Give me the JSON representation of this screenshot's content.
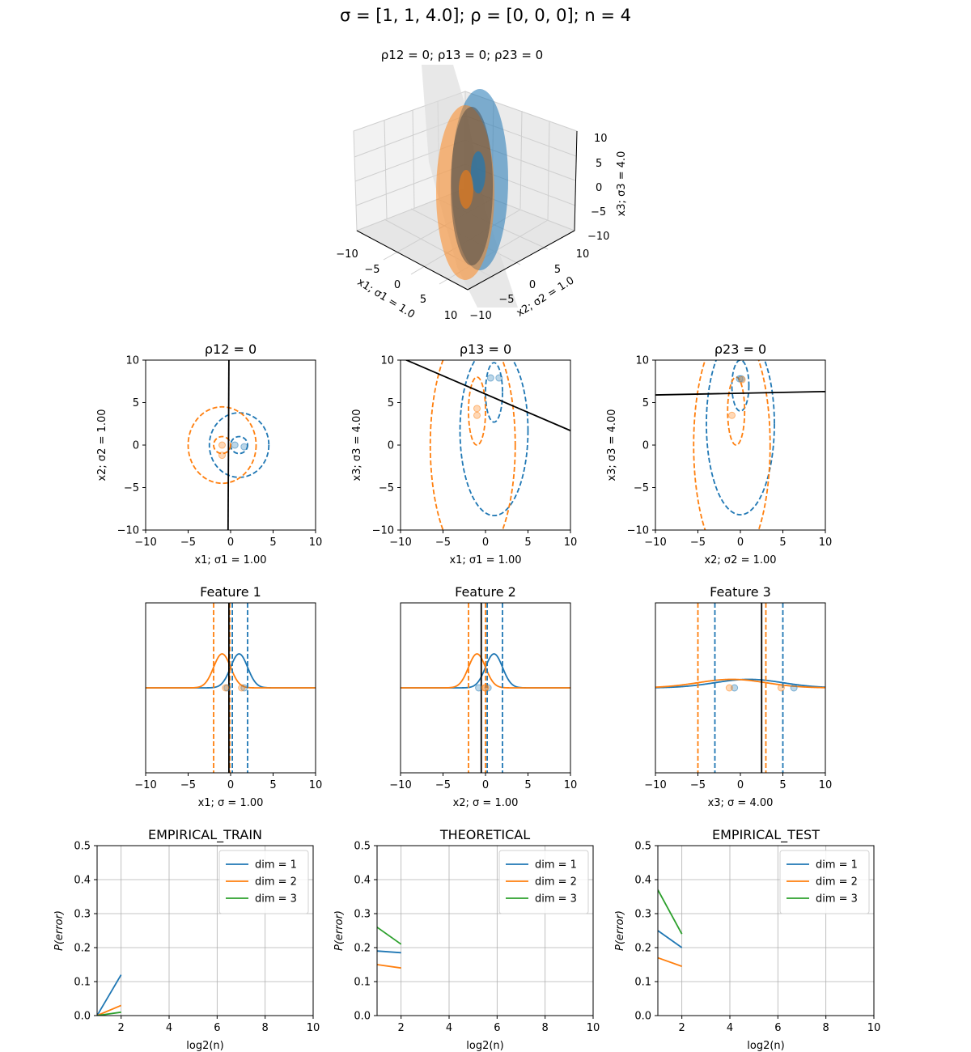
{
  "figure": {
    "suptitle": "σ =  [1, 1, 4.0]; ρ =  [0, 0, 0]; n =  4"
  },
  "colors": {
    "class_a": "#1f77b4",
    "class_b": "#ff7f0e",
    "class_c": "#2ca02c",
    "boundary": "#000000",
    "grid": "#b0b0b0"
  },
  "chart_data": [
    {
      "id": "surface3d",
      "type": "surface3d",
      "title": "ρ12 = 0;  ρ13 = 0;  ρ23 = 0",
      "xlabel": "x1;  σ1 = 1.0",
      "ylabel": "x2;  σ2 = 1.0",
      "zlabel": "x3;  σ3 = 4.0",
      "xlim": [
        -10,
        10
      ],
      "ylim": [
        -10,
        10
      ],
      "zlim": [
        -10,
        10
      ],
      "ticks": [
        -10,
        -5,
        0,
        5,
        10
      ]
    },
    {
      "id": "contour12",
      "type": "contour",
      "title": "ρ12 = 0",
      "xlabel": "x1;  σ1 = 1.00",
      "ylabel": "x2;  σ2 = 1.00",
      "xlim": [
        -10,
        10
      ],
      "ylim": [
        -10,
        10
      ],
      "ticks": [
        -10,
        -5,
        0,
        5,
        10
      ],
      "ellipses": [
        {
          "class": "a",
          "cx": 1.0,
          "cy": 0,
          "rx": 1.0,
          "ry": 1.0
        },
        {
          "class": "a",
          "cx": 1.0,
          "cy": 0,
          "rx": 3.5,
          "ry": 3.8
        },
        {
          "class": "b",
          "cx": -1.0,
          "cy": 0,
          "rx": 1.0,
          "ry": 1.0
        },
        {
          "class": "b",
          "cx": -1.0,
          "cy": 0,
          "rx": 4.0,
          "ry": 4.5
        }
      ],
      "points": [
        {
          "class": "a",
          "x": 0.5,
          "y": 0.0
        },
        {
          "class": "a",
          "x": 1.6,
          "y": -0.2
        },
        {
          "class": "b",
          "x": -1.0,
          "y": 0.0
        },
        {
          "class": "b",
          "x": -1.0,
          "y": -1.2
        }
      ],
      "boundary": [
        [
          -0.2,
          10
        ],
        [
          -0.3,
          -10
        ]
      ]
    },
    {
      "id": "contour13",
      "type": "contour",
      "title": "ρ13 = 0",
      "xlabel": "x1;  σ1 = 1.00",
      "ylabel": "x3;  σ3 = 4.00",
      "xlim": [
        -10,
        10
      ],
      "ylim": [
        -10,
        10
      ],
      "ticks": [
        -10,
        -5,
        0,
        5,
        10
      ],
      "ellipses": [
        {
          "class": "a",
          "cx": 1.0,
          "cy": 6.2,
          "rx": 1.0,
          "ry": 3.5
        },
        {
          "class": "a",
          "cx": 1.0,
          "cy": 1.7,
          "rx": 4.0,
          "ry": 10.0
        },
        {
          "class": "b",
          "cx": -1.0,
          "cy": 4.0,
          "rx": 1.0,
          "ry": 4.0
        },
        {
          "class": "b",
          "cx": -1.5,
          "cy": 0.0,
          "rx": 5.0,
          "ry": 14.0
        }
      ],
      "points": [
        {
          "class": "a",
          "x": 0.6,
          "y": 7.9
        },
        {
          "class": "a",
          "x": 1.6,
          "y": 7.9
        },
        {
          "class": "b",
          "x": -1.0,
          "y": 4.3
        },
        {
          "class": "b",
          "x": -1.0,
          "y": 3.5
        }
      ],
      "boundary": [
        [
          -10,
          10.3
        ],
        [
          10,
          1.7
        ]
      ]
    },
    {
      "id": "contour23",
      "type": "contour",
      "title": "ρ23 = 0",
      "xlabel": "x2;  σ2 = 1.00",
      "ylabel": "x3;  σ3 = 4.00",
      "xlim": [
        -10,
        10
      ],
      "ylim": [
        -10,
        10
      ],
      "ticks": [
        -10,
        -5,
        0,
        5,
        10
      ],
      "ellipses": [
        {
          "class": "a",
          "cx": 0.0,
          "cy": 7.0,
          "rx": 1.0,
          "ry": 3.0
        },
        {
          "class": "a",
          "cx": 0.0,
          "cy": 2.5,
          "rx": 4.0,
          "ry": 10.7
        },
        {
          "class": "b",
          "cx": -0.5,
          "cy": 4.0,
          "rx": 1.0,
          "ry": 4.0
        },
        {
          "class": "b",
          "cx": -1.0,
          "cy": 0.0,
          "rx": 4.5,
          "ry": 14.0
        }
      ],
      "points": [
        {
          "class": "a",
          "x": -0.1,
          "y": 7.8
        },
        {
          "class": "a",
          "x": 0.1,
          "y": 7.8
        },
        {
          "class": "b",
          "x": -1.0,
          "y": 3.5
        },
        {
          "class": "b",
          "x": 0.2,
          "y": 7.7
        }
      ],
      "boundary": [
        [
          -10,
          5.9
        ],
        [
          10,
          6.3
        ]
      ]
    },
    {
      "id": "feature1",
      "type": "density",
      "title": "Feature 1",
      "xlabel": "x1; σ = 1.00",
      "xlim": [
        -10,
        10
      ],
      "ylim": [
        -1,
        1
      ],
      "ticks": [
        -10,
        -5,
        0,
        5,
        10
      ],
      "curves": [
        {
          "class": "a",
          "mu": 1.0,
          "sigma": 1.0,
          "amp": 0.4
        },
        {
          "class": "b",
          "mu": -1.0,
          "sigma": 1.0,
          "amp": 0.4
        }
      ],
      "vlines_dashed": [
        {
          "class": "a",
          "x": 2.0
        },
        {
          "class": "a",
          "x": 0.2
        },
        {
          "class": "b",
          "x": -2.0
        },
        {
          "class": "b",
          "x": -0.1
        }
      ],
      "vline_solid": -0.2,
      "points": [
        {
          "class": "a",
          "x": -0.4
        },
        {
          "class": "a",
          "x": 1.6
        },
        {
          "class": "b",
          "x": -0.6
        },
        {
          "class": "b",
          "x": 1.3
        }
      ]
    },
    {
      "id": "feature2",
      "type": "density",
      "title": "Feature 2",
      "xlabel": "x2; σ = 1.00",
      "xlim": [
        -10,
        10
      ],
      "ylim": [
        -1,
        1
      ],
      "ticks": [
        -10,
        -5,
        0,
        5,
        10
      ],
      "curves": [
        {
          "class": "a",
          "mu": 1.0,
          "sigma": 1.0,
          "amp": 0.4
        },
        {
          "class": "b",
          "mu": -1.0,
          "sigma": 1.0,
          "amp": 0.4
        }
      ],
      "vlines_dashed": [
        {
          "class": "a",
          "x": 2.0
        },
        {
          "class": "a",
          "x": 0.2
        },
        {
          "class": "b",
          "x": -2.0
        },
        {
          "class": "b",
          "x": 0.0
        }
      ],
      "vline_solid": -0.5,
      "points": [
        {
          "class": "a",
          "x": -0.8
        },
        {
          "class": "a",
          "x": 0.3
        },
        {
          "class": "b",
          "x": -0.1
        },
        {
          "class": "b",
          "x": 0.0
        }
      ]
    },
    {
      "id": "feature3",
      "type": "density",
      "title": "Feature 3",
      "xlabel": "x3; σ = 4.00",
      "xlim": [
        -10,
        10
      ],
      "ylim": [
        -1,
        1
      ],
      "ticks": [
        -10,
        -5,
        0,
        5,
        10
      ],
      "curves": [
        {
          "class": "a",
          "mu": 1.0,
          "sigma": 4.0,
          "amp": 0.1
        },
        {
          "class": "b",
          "mu": -1.0,
          "sigma": 4.0,
          "amp": 0.1
        }
      ],
      "vlines_dashed": [
        {
          "class": "a",
          "x": 5.0
        },
        {
          "class": "a",
          "x": -3.0
        },
        {
          "class": "b",
          "x": -5.0
        },
        {
          "class": "b",
          "x": 3.0
        }
      ],
      "vline_solid": 2.5,
      "points": [
        {
          "class": "a",
          "x": -0.7
        },
        {
          "class": "a",
          "x": 6.3
        },
        {
          "class": "b",
          "x": -1.3
        },
        {
          "class": "b",
          "x": 4.8
        }
      ]
    },
    {
      "id": "empirical_train",
      "type": "line",
      "title": "EMPIRICAL_TRAIN",
      "xlabel": "log2(n)",
      "ylabel": "P(error)",
      "xlim": [
        1,
        10
      ],
      "ylim": [
        0,
        0.5
      ],
      "xticks": [
        2,
        4,
        6,
        8,
        10
      ],
      "yticks": [
        0.0,
        0.1,
        0.2,
        0.3,
        0.4,
        0.5
      ],
      "legend": "top-right",
      "x": [
        1,
        2
      ],
      "series": [
        {
          "name": "dim = 1",
          "class": "a",
          "values": [
            0.0,
            0.12
          ]
        },
        {
          "name": "dim = 2",
          "class": "b",
          "values": [
            0.0,
            0.03
          ]
        },
        {
          "name": "dim = 3",
          "class": "c",
          "values": [
            0.0,
            0.01
          ]
        }
      ]
    },
    {
      "id": "theoretical",
      "type": "line",
      "title": "THEORETICAL",
      "xlabel": "log2(n)",
      "ylabel": "P(error)",
      "xlim": [
        1,
        10
      ],
      "ylim": [
        0,
        0.5
      ],
      "xticks": [
        2,
        4,
        6,
        8,
        10
      ],
      "yticks": [
        0.0,
        0.1,
        0.2,
        0.3,
        0.4,
        0.5
      ],
      "legend": "top-right",
      "x": [
        1,
        2
      ],
      "series": [
        {
          "name": "dim = 1",
          "class": "a",
          "values": [
            0.19,
            0.185
          ]
        },
        {
          "name": "dim = 2",
          "class": "b",
          "values": [
            0.15,
            0.14
          ]
        },
        {
          "name": "dim = 3",
          "class": "c",
          "values": [
            0.26,
            0.21
          ]
        }
      ]
    },
    {
      "id": "empirical_test",
      "type": "line",
      "title": "EMPIRICAL_TEST",
      "xlabel": "log2(n)",
      "ylabel": "P(error)",
      "xlim": [
        1,
        10
      ],
      "ylim": [
        0,
        0.5
      ],
      "xticks": [
        2,
        4,
        6,
        8,
        10
      ],
      "yticks": [
        0.0,
        0.1,
        0.2,
        0.3,
        0.4,
        0.5
      ],
      "legend": "top-right",
      "x": [
        1,
        2
      ],
      "series": [
        {
          "name": "dim = 1",
          "class": "a",
          "values": [
            0.25,
            0.2
          ]
        },
        {
          "name": "dim = 2",
          "class": "b",
          "values": [
            0.17,
            0.145
          ]
        },
        {
          "name": "dim = 3",
          "class": "c",
          "values": [
            0.37,
            0.24
          ]
        }
      ]
    }
  ]
}
